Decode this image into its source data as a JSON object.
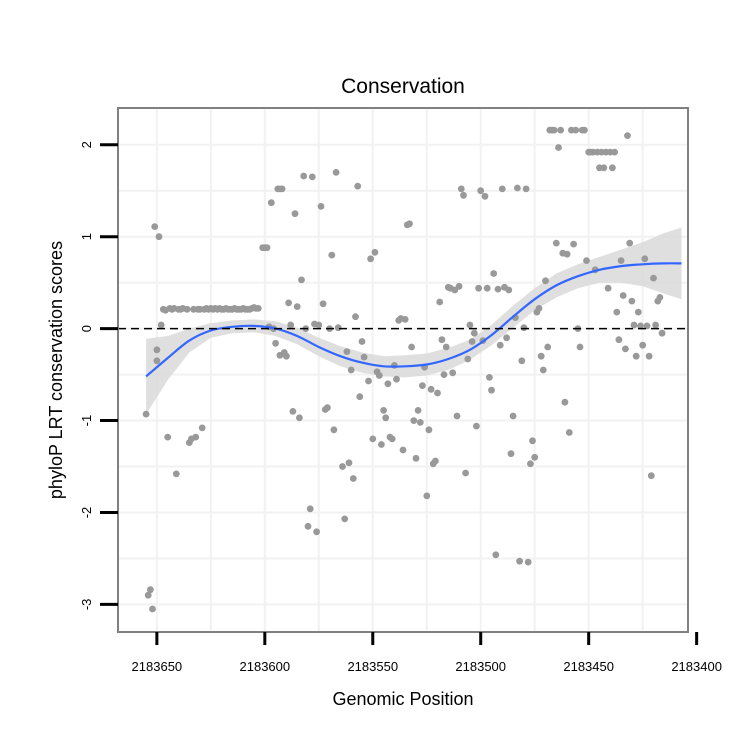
{
  "colors": {
    "points": "#999999",
    "smooth_line": "#3366ff",
    "confidence_band": "#d9d9d9",
    "grid": "#f2f2f2",
    "panel_border": "#808080",
    "reference_line": "#000000"
  },
  "chart_data": {
    "type": "scatter",
    "title": "Conservation",
    "xlabel": "Genomic Position",
    "ylabel": "phyloP LRT conservation scores",
    "x_reversed": true,
    "xlim": [
      2183404,
      2183668
    ],
    "ylim": [
      -3.3,
      2.4
    ],
    "x_ticks": [
      2183650,
      2183600,
      2183550,
      2183500,
      2183450,
      2183400
    ],
    "x_tick_labels": [
      "2183650",
      "2183600",
      "2183550",
      "2183500",
      "2183450",
      "2183400"
    ],
    "y_ticks": [
      -3,
      -2,
      -1,
      0,
      1,
      2
    ],
    "y_tick_labels": [
      "-3",
      "-2",
      "-1",
      "0",
      "1",
      "2"
    ],
    "reference_line": {
      "y": 0,
      "style": "dashed"
    },
    "grid": true,
    "points": [
      [
        2183655.0,
        -0.93
      ],
      [
        2183654.0,
        -2.9
      ],
      [
        2183653.0,
        -2.84
      ],
      [
        2183652.0,
        -3.05
      ],
      [
        2183651.0,
        1.11
      ],
      [
        2183650.0,
        -0.35
      ],
      [
        2183650.0,
        -0.23
      ],
      [
        2183649.0,
        1.0
      ],
      [
        2183648.0,
        0.04
      ],
      [
        2183647.0,
        0.21
      ],
      [
        2183646.0,
        0.2
      ],
      [
        2183645.0,
        -1.18
      ],
      [
        2183644.0,
        0.22
      ],
      [
        2183643.0,
        0.21
      ],
      [
        2183642.0,
        0.22
      ],
      [
        2183641.0,
        -1.58
      ],
      [
        2183640.0,
        0.21
      ],
      [
        2183639.0,
        0.21
      ],
      [
        2183638.0,
        0.22
      ],
      [
        2183636.0,
        0.21
      ],
      [
        2183635.0,
        -1.24
      ],
      [
        2183634.0,
        -1.2
      ],
      [
        2183633.0,
        0.21
      ],
      [
        2183632.0,
        -1.18
      ],
      [
        2183631.0,
        0.21
      ],
      [
        2183630.0,
        0.21
      ],
      [
        2183629.0,
        -1.08
      ],
      [
        2183628.0,
        0.21
      ],
      [
        2183627.0,
        0.22
      ],
      [
        2183626.0,
        0.21
      ],
      [
        2183625.0,
        0.22
      ],
      [
        2183624.0,
        0.21
      ],
      [
        2183623.0,
        0.22
      ],
      [
        2183622.0,
        0.21
      ],
      [
        2183621.0,
        0.22
      ],
      [
        2183620.0,
        0.21
      ],
      [
        2183619.0,
        0.21
      ],
      [
        2183618.0,
        0.22
      ],
      [
        2183617.0,
        0.21
      ],
      [
        2183616.0,
        0.21
      ],
      [
        2183615.0,
        0.21
      ],
      [
        2183614.0,
        0.22
      ],
      [
        2183613.0,
        0.21
      ],
      [
        2183612.0,
        0.21
      ],
      [
        2183611.0,
        0.21
      ],
      [
        2183610.0,
        0.22
      ],
      [
        2183609.0,
        0.21
      ],
      [
        2183608.0,
        0.21
      ],
      [
        2183607.0,
        0.21
      ],
      [
        2183606.0,
        0.22
      ],
      [
        2183605.0,
        0.23
      ],
      [
        2183604.0,
        0.22
      ],
      [
        2183603.0,
        0.22
      ],
      [
        2183601.0,
        0.88
      ],
      [
        2183600.0,
        0.88
      ],
      [
        2183599.0,
        0.88
      ],
      [
        2183598.0,
        0.02
      ],
      [
        2183597.0,
        1.37
      ],
      [
        2183596.0,
        0.0
      ],
      [
        2183595.0,
        -0.16
      ],
      [
        2183594.0,
        1.52
      ],
      [
        2183593.0,
        -0.29
      ],
      [
        2183593.0,
        1.52
      ],
      [
        2183592.0,
        1.52
      ],
      [
        2183591.0,
        -0.26
      ],
      [
        2183590.0,
        -0.3
      ],
      [
        2183589.0,
        0.28
      ],
      [
        2183588.0,
        0.04
      ],
      [
        2183587.0,
        -0.9
      ],
      [
        2183586.0,
        1.25
      ],
      [
        2183585.0,
        0.24
      ],
      [
        2183584.0,
        -0.97
      ],
      [
        2183583.0,
        0.53
      ],
      [
        2183582.0,
        1.66
      ],
      [
        2183581.0,
        0.0
      ],
      [
        2183580.0,
        -2.15
      ],
      [
        2183579.0,
        -1.96
      ],
      [
        2183578.0,
        1.65
      ],
      [
        2183577.0,
        0.05
      ],
      [
        2183576.0,
        -2.21
      ],
      [
        2183575.0,
        0.04
      ],
      [
        2183574.0,
        1.33
      ],
      [
        2183573.0,
        0.27
      ],
      [
        2183572.0,
        -0.88
      ],
      [
        2183571.0,
        -0.86
      ],
      [
        2183570.0,
        0.0
      ],
      [
        2183569.0,
        0.8
      ],
      [
        2183568.0,
        -1.1
      ],
      [
        2183567.0,
        1.7
      ],
      [
        2183566.0,
        0.01
      ],
      [
        2183564.0,
        -1.5
      ],
      [
        2183563.0,
        -2.07
      ],
      [
        2183562.0,
        -0.25
      ],
      [
        2183561.0,
        -1.46
      ],
      [
        2183560.0,
        -0.45
      ],
      [
        2183559.0,
        -1.63
      ],
      [
        2183558.0,
        0.13
      ],
      [
        2183557.0,
        1.55
      ],
      [
        2183556.0,
        -0.74
      ],
      [
        2183555.0,
        -0.14
      ],
      [
        2183554.0,
        -0.31
      ],
      [
        2183552.0,
        -0.57
      ],
      [
        2183551.0,
        0.76
      ],
      [
        2183550.0,
        -1.2
      ],
      [
        2183549.0,
        0.83
      ],
      [
        2183548.0,
        -0.47
      ],
      [
        2183547.0,
        -0.51
      ],
      [
        2183546.0,
        -1.26
      ],
      [
        2183545.0,
        -0.89
      ],
      [
        2183544.0,
        -0.97
      ],
      [
        2183543.0,
        -0.6
      ],
      [
        2183542.0,
        -1.18
      ],
      [
        2183541.0,
        -1.2
      ],
      [
        2183540.0,
        -0.4
      ],
      [
        2183539.0,
        -0.55
      ],
      [
        2183538.0,
        0.09
      ],
      [
        2183537.0,
        0.11
      ],
      [
        2183536.0,
        -1.32
      ],
      [
        2183535.0,
        0.1
      ],
      [
        2183534.0,
        1.13
      ],
      [
        2183533.0,
        1.14
      ],
      [
        2183532.0,
        -0.2
      ],
      [
        2183531.0,
        -1.0
      ],
      [
        2183530.0,
        -1.41
      ],
      [
        2183529.0,
        -0.89
      ],
      [
        2183528.0,
        -1.02
      ],
      [
        2183527.0,
        -0.62
      ],
      [
        2183526.0,
        -0.42
      ],
      [
        2183525.0,
        -1.82
      ],
      [
        2183524.0,
        -1.1
      ],
      [
        2183523.0,
        -0.66
      ],
      [
        2183522.0,
        -1.47
      ],
      [
        2183521.0,
        -1.44
      ],
      [
        2183520.0,
        -0.7
      ],
      [
        2183519.0,
        0.29
      ],
      [
        2183518.0,
        -0.12
      ],
      [
        2183517.0,
        -0.5
      ],
      [
        2183516.0,
        -0.2
      ],
      [
        2183515.0,
        0.45
      ],
      [
        2183514.0,
        0.44
      ],
      [
        2183513.0,
        -0.48
      ],
      [
        2183512.0,
        0.42
      ],
      [
        2183511.0,
        -0.95
      ],
      [
        2183510.0,
        0.46
      ],
      [
        2183509.0,
        1.52
      ],
      [
        2183508.0,
        1.45
      ],
      [
        2183507.0,
        -1.57
      ],
      [
        2183506.0,
        -0.33
      ],
      [
        2183505.0,
        0.04
      ],
      [
        2183504.0,
        -0.14
      ],
      [
        2183503.0,
        -0.05
      ],
      [
        2183502.0,
        -1.06
      ],
      [
        2183501.0,
        0.44
      ],
      [
        2183500.0,
        1.5
      ],
      [
        2183499.0,
        -0.13
      ],
      [
        2183498.0,
        1.44
      ],
      [
        2183497.0,
        0.44
      ],
      [
        2183496.0,
        -0.53
      ],
      [
        2183495.0,
        -0.67
      ],
      [
        2183494.0,
        0.6
      ],
      [
        2183493.0,
        -2.46
      ],
      [
        2183492.0,
        0.43
      ],
      [
        2183491.0,
        -0.18
      ],
      [
        2183490.0,
        1.52
      ],
      [
        2183489.0,
        0.45
      ],
      [
        2183488.0,
        -0.1
      ],
      [
        2183487.0,
        0.42
      ],
      [
        2183486.0,
        -1.36
      ],
      [
        2183485.0,
        -0.95
      ],
      [
        2183484.0,
        0.12
      ],
      [
        2183483.0,
        1.53
      ],
      [
        2183482.0,
        -2.53
      ],
      [
        2183481.0,
        -0.35
      ],
      [
        2183480.0,
        0.01
      ],
      [
        2183479.0,
        1.52
      ],
      [
        2183478.0,
        -2.54
      ],
      [
        2183477.0,
        -1.47
      ],
      [
        2183476.0,
        -1.22
      ],
      [
        2183475.0,
        -1.4
      ],
      [
        2183474.0,
        0.18
      ],
      [
        2183473.0,
        0.22
      ],
      [
        2183472.0,
        -0.3
      ],
      [
        2183471.0,
        -0.45
      ],
      [
        2183470.0,
        0.52
      ],
      [
        2183469.0,
        -0.2
      ],
      [
        2183468.0,
        2.16
      ],
      [
        2183467.0,
        2.16
      ],
      [
        2183466.0,
        2.16
      ],
      [
        2183465.0,
        0.93
      ],
      [
        2183464.0,
        1.97
      ],
      [
        2183463.0,
        2.16
      ],
      [
        2183462.0,
        0.82
      ],
      [
        2183461.0,
        -0.8
      ],
      [
        2183460.0,
        0.81
      ],
      [
        2183459.0,
        -1.13
      ],
      [
        2183458.0,
        2.16
      ],
      [
        2183457.0,
        0.92
      ],
      [
        2183456.0,
        2.16
      ],
      [
        2183455.0,
        0.0
      ],
      [
        2183454.0,
        -0.2
      ],
      [
        2183453.0,
        2.16
      ],
      [
        2183452.0,
        2.16
      ],
      [
        2183451.0,
        0.74
      ],
      [
        2183450.0,
        1.92
      ],
      [
        2183449.0,
        1.92
      ],
      [
        2183448.0,
        1.92
      ],
      [
        2183447.0,
        0.64
      ],
      [
        2183446.0,
        1.92
      ],
      [
        2183445.0,
        1.75
      ],
      [
        2183444.0,
        1.92
      ],
      [
        2183443.0,
        1.75
      ],
      [
        2183442.0,
        1.92
      ],
      [
        2183441.0,
        0.44
      ],
      [
        2183440.0,
        1.92
      ],
      [
        2183439.0,
        1.75
      ],
      [
        2183438.0,
        1.92
      ],
      [
        2183437.0,
        0.18
      ],
      [
        2183436.0,
        -0.12
      ],
      [
        2183435.0,
        0.74
      ],
      [
        2183434.0,
        0.36
      ],
      [
        2183433.0,
        -0.22
      ],
      [
        2183432.0,
        2.1
      ],
      [
        2183431.0,
        0.93
      ],
      [
        2183430.0,
        0.3
      ],
      [
        2183429.0,
        0.04
      ],
      [
        2183428.0,
        -0.3
      ],
      [
        2183427.0,
        0.18
      ],
      [
        2183426.0,
        0.03
      ],
      [
        2183425.0,
        -0.18
      ],
      [
        2183424.0,
        0.76
      ],
      [
        2183423.0,
        0.03
      ],
      [
        2183422.0,
        -0.3
      ],
      [
        2183421.0,
        -1.6
      ],
      [
        2183420.0,
        0.55
      ],
      [
        2183419.0,
        0.04
      ],
      [
        2183418.0,
        0.3
      ],
      [
        2183417.0,
        0.34
      ],
      [
        2183416.0,
        -0.05
      ]
    ],
    "smooth": {
      "x": [
        2183655,
        2183645,
        2183635,
        2183625,
        2183615,
        2183605,
        2183595,
        2183585,
        2183575,
        2183565,
        2183555,
        2183545,
        2183535,
        2183525,
        2183515,
        2183505,
        2183495,
        2183485,
        2183475,
        2183465,
        2183455,
        2183445,
        2183435,
        2183425,
        2183415,
        2183407
      ],
      "y": [
        -0.52,
        -0.32,
        -0.13,
        -0.02,
        0.02,
        0.03,
        0.0,
        -0.08,
        -0.2,
        -0.3,
        -0.37,
        -0.41,
        -0.41,
        -0.39,
        -0.33,
        -0.23,
        -0.07,
        0.13,
        0.32,
        0.47,
        0.57,
        0.64,
        0.68,
        0.7,
        0.71,
        0.71
      ],
      "lower": [
        -0.93,
        -0.56,
        -0.26,
        -0.1,
        -0.05,
        -0.04,
        -0.08,
        -0.17,
        -0.3,
        -0.41,
        -0.48,
        -0.52,
        -0.53,
        -0.51,
        -0.45,
        -0.34,
        -0.18,
        0.01,
        0.2,
        0.34,
        0.44,
        0.5,
        0.5,
        0.46,
        0.38,
        0.32
      ],
      "upper": [
        -0.11,
        -0.08,
        0.0,
        0.06,
        0.09,
        0.1,
        0.08,
        0.01,
        -0.1,
        -0.19,
        -0.26,
        -0.3,
        -0.29,
        -0.27,
        -0.21,
        -0.12,
        0.04,
        0.25,
        0.44,
        0.6,
        0.7,
        0.78,
        0.86,
        0.94,
        1.04,
        1.1
      ]
    }
  }
}
